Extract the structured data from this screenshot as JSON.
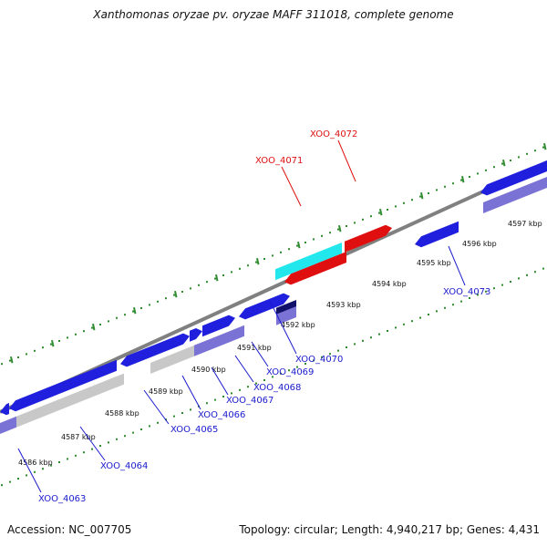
{
  "title": "Xanthomonas oryzae pv. oryzae MAFF 311018, complete genome",
  "accession_text": "Accession: NC_007705",
  "topology_text": "Topology: circular; Length: 4,940,217 bp; Genes: 4,431",
  "colors": {
    "backbone": "#808080",
    "tick": "#2e8b2e",
    "label_default": "#1a1acc",
    "label_highlight": "#dd1111",
    "gene_blue": "#1f1fdd",
    "gene_blue_light": "#7b72d6",
    "gene_gray": "#c8c8c8",
    "gene_red": "#e00f0f",
    "gene_cyan": "#22e8ee",
    "gene_dark": "#11116a"
  },
  "ticks": [
    {
      "label": "4586 kbp"
    },
    {
      "label": "4587 kbp"
    },
    {
      "label": "4588 kbp"
    },
    {
      "label": "4589 kbp"
    },
    {
      "label": "4590 kbp"
    },
    {
      "label": "4591 kbp"
    },
    {
      "label": "4592 kbp"
    },
    {
      "label": "4593 kbp"
    },
    {
      "label": "4594 kbp"
    },
    {
      "label": "4595 kbp"
    },
    {
      "label": "4596 kbp"
    },
    {
      "label": "4597 kbp"
    }
  ],
  "gene_labels": [
    {
      "label": "XOO_4063",
      "highlight": false
    },
    {
      "label": "XOO_4064",
      "highlight": false
    },
    {
      "label": "XOO_4065",
      "highlight": false
    },
    {
      "label": "XOO_4066",
      "highlight": false
    },
    {
      "label": "XOO_4067",
      "highlight": false
    },
    {
      "label": "XOO_4068",
      "highlight": false
    },
    {
      "label": "XOO_4069",
      "highlight": false
    },
    {
      "label": "XOO_4070",
      "highlight": false
    },
    {
      "label": "XOO_4071",
      "highlight": true
    },
    {
      "label": "XOO_4072",
      "highlight": true
    },
    {
      "label": "XOO_4073",
      "highlight": false
    }
  ]
}
